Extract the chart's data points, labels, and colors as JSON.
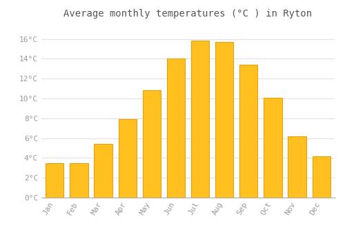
{
  "months": [
    "Jan",
    "Feb",
    "Mar",
    "Apr",
    "May",
    "Jun",
    "Jul",
    "Aug",
    "Sep",
    "Oct",
    "Nov",
    "Dec"
  ],
  "temperatures": [
    3.5,
    3.5,
    5.4,
    7.9,
    10.8,
    14.0,
    15.8,
    15.7,
    13.4,
    10.1,
    6.2,
    4.2
  ],
  "bar_color": "#FFC020",
  "bar_edge_color": "#E8A010",
  "background_color": "#FFFFFF",
  "grid_color": "#E0E0E0",
  "title": "Average monthly temperatures (°C ) in Ryton",
  "title_fontsize": 10,
  "tick_label_color": "#999999",
  "ylim": [
    0,
    17.5
  ],
  "yticks": [
    0,
    2,
    4,
    6,
    8,
    10,
    12,
    14,
    16
  ],
  "ytick_labels": [
    "0°C",
    "2°C",
    "4°C",
    "6°C",
    "8°C",
    "10°C",
    "12°C",
    "14°C",
    "16°C"
  ]
}
